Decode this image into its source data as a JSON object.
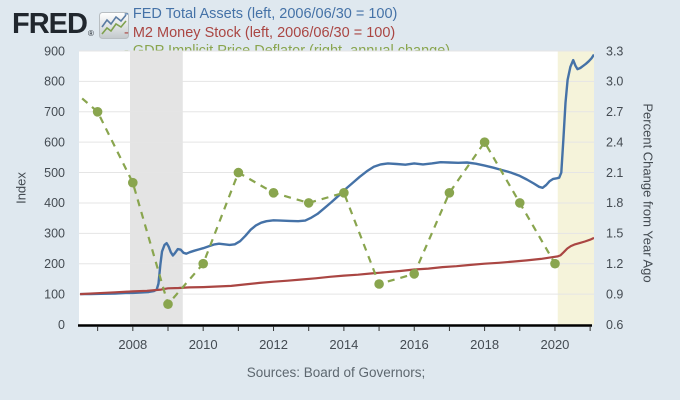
{
  "header": {
    "logo_text": "FRED",
    "logo_registered": "®",
    "legend": [
      {
        "label": "- FED Total Assets (left, 2006/06/30 = 100)",
        "color": "#4572a7"
      },
      {
        "label": "- M2 Money Stock (left, 2006/06/30 = 100)",
        "color": "#aa4643"
      },
      {
        "label": "- GDP Implicit Price Deflator (right, annual change)",
        "color": "#89a54e"
      }
    ]
  },
  "footer": {
    "sources": "Sources: Board of Governors;"
  },
  "colors": {
    "page_background": "#dfe8ef",
    "plot_background": "#ffffff",
    "gridline": "#e5e5e5",
    "axis_line": "#000000",
    "recession_band": "#e4e4e4",
    "covid_band": "#f5f3da",
    "blue_series": "#4572a7",
    "red_series": "#aa4643",
    "green_series": "#89a54e"
  },
  "chart_data": {
    "type": "line",
    "x_axis": {
      "range": [
        2006.47,
        2021.11
      ],
      "labeled_ticks": [
        2008,
        2010,
        2012,
        2014,
        2016,
        2018,
        2020
      ],
      "minor_ticks": [
        2007,
        2008,
        2009,
        2010,
        2011,
        2012,
        2013,
        2014,
        2015,
        2016,
        2017,
        2018,
        2019,
        2020,
        2021
      ]
    },
    "left_axis": {
      "label": "Index",
      "range": [
        0,
        900
      ],
      "ticks": [
        0,
        100,
        200,
        300,
        400,
        500,
        600,
        700,
        800,
        900
      ]
    },
    "right_axis": {
      "label": "Percent Change from Year Ago",
      "range": [
        0.6,
        3.3
      ],
      "ticks": [
        "0.6",
        "0.9",
        "1.2",
        "1.5",
        "1.8",
        "2.1",
        "2.4",
        "2.7",
        "3.0",
        "3.3"
      ]
    },
    "bands": [
      {
        "name": "recession-2008",
        "from": 2007.92,
        "to": 2009.42,
        "color": "#e4e4e4"
      },
      {
        "name": "recession-2020",
        "from": 2020.08,
        "to": 2021.11,
        "color": "#f5f3da"
      }
    ],
    "series": [
      {
        "name": "FED Total Assets (left, 2006/06/30 = 100)",
        "axis": "left",
        "color": "#4572a7",
        "style": "solid",
        "markers": false,
        "points": [
          [
            2006.5,
            100
          ],
          [
            2006.8,
            100
          ],
          [
            2007.1,
            101
          ],
          [
            2007.5,
            102
          ],
          [
            2007.8,
            104
          ],
          [
            2008.0,
            104
          ],
          [
            2008.2,
            105
          ],
          [
            2008.45,
            107
          ],
          [
            2008.6,
            110
          ],
          [
            2008.68,
            115
          ],
          [
            2008.73,
            135
          ],
          [
            2008.78,
            195
          ],
          [
            2008.83,
            240
          ],
          [
            2008.9,
            262
          ],
          [
            2008.96,
            268
          ],
          [
            2009.02,
            256
          ],
          [
            2009.08,
            238
          ],
          [
            2009.14,
            227
          ],
          [
            2009.2,
            235
          ],
          [
            2009.28,
            248
          ],
          [
            2009.36,
            246
          ],
          [
            2009.44,
            236
          ],
          [
            2009.52,
            233
          ],
          [
            2009.62,
            238
          ],
          [
            2009.75,
            243
          ],
          [
            2009.88,
            247
          ],
          [
            2010.0,
            251
          ],
          [
            2010.15,
            257
          ],
          [
            2010.3,
            263
          ],
          [
            2010.45,
            266
          ],
          [
            2010.6,
            264
          ],
          [
            2010.75,
            262
          ],
          [
            2010.9,
            264
          ],
          [
            2011.05,
            274
          ],
          [
            2011.2,
            292
          ],
          [
            2011.35,
            312
          ],
          [
            2011.5,
            326
          ],
          [
            2011.65,
            335
          ],
          [
            2011.8,
            340
          ],
          [
            2012.0,
            343
          ],
          [
            2012.2,
            342
          ],
          [
            2012.45,
            341
          ],
          [
            2012.7,
            340
          ],
          [
            2012.9,
            342
          ],
          [
            2013.05,
            350
          ],
          [
            2013.25,
            364
          ],
          [
            2013.45,
            383
          ],
          [
            2013.65,
            403
          ],
          [
            2013.85,
            424
          ],
          [
            2014.05,
            446
          ],
          [
            2014.25,
            466
          ],
          [
            2014.45,
            486
          ],
          [
            2014.65,
            504
          ],
          [
            2014.85,
            519
          ],
          [
            2015.05,
            527
          ],
          [
            2015.25,
            530
          ],
          [
            2015.5,
            528
          ],
          [
            2015.75,
            526
          ],
          [
            2016.0,
            530
          ],
          [
            2016.25,
            527
          ],
          [
            2016.5,
            530
          ],
          [
            2016.75,
            534
          ],
          [
            2017.0,
            533
          ],
          [
            2017.25,
            532
          ],
          [
            2017.5,
            533
          ],
          [
            2017.75,
            529
          ],
          [
            2018.0,
            523
          ],
          [
            2018.25,
            516
          ],
          [
            2018.5,
            508
          ],
          [
            2018.75,
            500
          ],
          [
            2019.0,
            489
          ],
          [
            2019.2,
            477
          ],
          [
            2019.4,
            464
          ],
          [
            2019.55,
            453
          ],
          [
            2019.65,
            450
          ],
          [
            2019.75,
            459
          ],
          [
            2019.85,
            472
          ],
          [
            2019.95,
            479
          ],
          [
            2020.05,
            481
          ],
          [
            2020.12,
            483
          ],
          [
            2020.18,
            500
          ],
          [
            2020.24,
            610
          ],
          [
            2020.3,
            730
          ],
          [
            2020.36,
            805
          ],
          [
            2020.44,
            848
          ],
          [
            2020.52,
            870
          ],
          [
            2020.58,
            852
          ],
          [
            2020.64,
            840
          ],
          [
            2020.72,
            844
          ],
          [
            2020.8,
            851
          ],
          [
            2020.88,
            858
          ],
          [
            2020.96,
            866
          ],
          [
            2021.04,
            876
          ],
          [
            2021.11,
            888
          ]
        ]
      },
      {
        "name": "M2 Money Stock (left, 2006/06/30 = 100)",
        "axis": "left",
        "color": "#aa4643",
        "style": "solid",
        "markers": false,
        "points": [
          [
            2006.5,
            100
          ],
          [
            2007.0,
            103
          ],
          [
            2007.5,
            106
          ],
          [
            2008.0,
            109
          ],
          [
            2008.4,
            111
          ],
          [
            2008.8,
            115
          ],
          [
            2009.0,
            119
          ],
          [
            2009.3,
            120
          ],
          [
            2009.6,
            122
          ],
          [
            2010.0,
            123
          ],
          [
            2010.4,
            125
          ],
          [
            2010.8,
            127
          ],
          [
            2011.2,
            132
          ],
          [
            2011.6,
            137
          ],
          [
            2012.0,
            141
          ],
          [
            2012.4,
            144
          ],
          [
            2012.8,
            148
          ],
          [
            2013.2,
            152
          ],
          [
            2013.6,
            157
          ],
          [
            2014.0,
            161
          ],
          [
            2014.4,
            164
          ],
          [
            2014.8,
            168
          ],
          [
            2015.2,
            172
          ],
          [
            2015.6,
            176
          ],
          [
            2016.0,
            181
          ],
          [
            2016.4,
            184
          ],
          [
            2016.8,
            189
          ],
          [
            2017.2,
            192
          ],
          [
            2017.6,
            196
          ],
          [
            2018.0,
            200
          ],
          [
            2018.4,
            203
          ],
          [
            2018.8,
            207
          ],
          [
            2019.2,
            211
          ],
          [
            2019.6,
            216
          ],
          [
            2019.9,
            221
          ],
          [
            2020.08,
            224
          ],
          [
            2020.16,
            228
          ],
          [
            2020.25,
            238
          ],
          [
            2020.35,
            250
          ],
          [
            2020.45,
            258
          ],
          [
            2020.55,
            263
          ],
          [
            2020.7,
            268
          ],
          [
            2020.85,
            273
          ],
          [
            2021.0,
            279
          ],
          [
            2021.11,
            285
          ]
        ]
      },
      {
        "name": "GDP Implicit Price Deflator (right, annual change)",
        "axis": "right",
        "color": "#89a54e",
        "style": "dashed",
        "markers": true,
        "points": [
          [
            2006,
            3.0
          ],
          [
            2007,
            2.7
          ],
          [
            2008,
            2.0
          ],
          [
            2009,
            0.8
          ],
          [
            2010,
            1.2
          ],
          [
            2011,
            2.1
          ],
          [
            2012,
            1.9
          ],
          [
            2013,
            1.8
          ],
          [
            2014,
            1.9
          ],
          [
            2015,
            1.0
          ],
          [
            2016,
            1.1
          ],
          [
            2017,
            1.9
          ],
          [
            2018,
            2.4
          ],
          [
            2019,
            1.8
          ],
          [
            2020,
            1.2
          ]
        ]
      }
    ]
  }
}
